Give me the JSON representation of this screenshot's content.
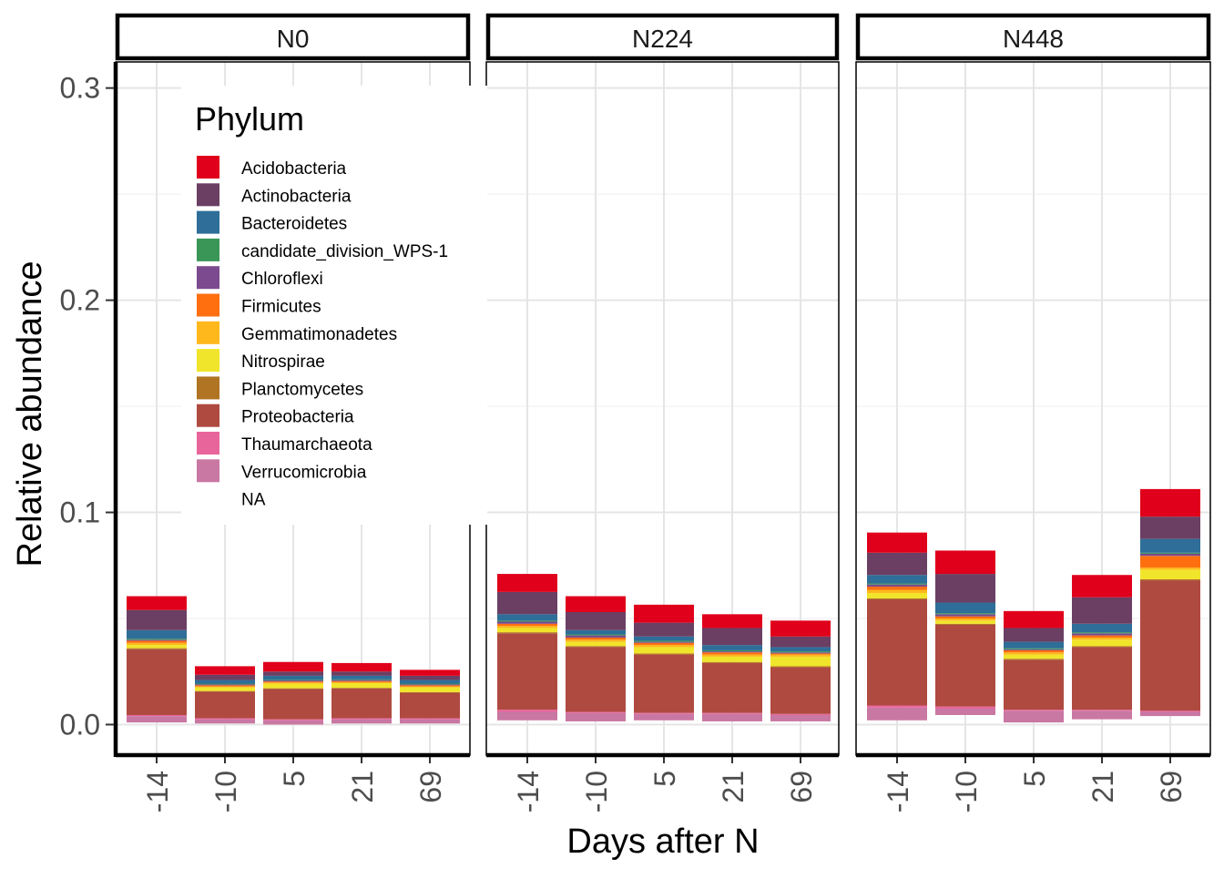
{
  "chart_data": {
    "type": "bar",
    "stacked": true,
    "facets": [
      "N0",
      "N224",
      "N448"
    ],
    "categories": [
      "-14",
      "-10",
      "5",
      "21",
      "69"
    ],
    "xlabel": "Days after N",
    "ylabel": "Relative abundance",
    "ylim": [
      -0.0144,
      0.3123
    ],
    "yticks": [
      0.0,
      0.1,
      0.2,
      0.3
    ],
    "ytick_labels": [
      "0.0",
      "0.1",
      "0.2",
      "0.3"
    ],
    "grid": true,
    "legend": {
      "title": "Phylum",
      "placement": "inside top-left of first panel",
      "entries": [
        {
          "name": "Acidobacteria",
          "color": "#E0001B"
        },
        {
          "name": "Actinobacteria",
          "color": "#6B3F63"
        },
        {
          "name": "Bacteroidetes",
          "color": "#2E6E99"
        },
        {
          "name": "candidate_division_WPS-1",
          "color": "#3A9657"
        },
        {
          "name": "Chloroflexi",
          "color": "#7B4A8F"
        },
        {
          "name": "Firmicutes",
          "color": "#FF6F0F"
        },
        {
          "name": "Gemmatimonadetes",
          "color": "#FFB81C"
        },
        {
          "name": "Nitrospirae",
          "color": "#F0E52A"
        },
        {
          "name": "Planctomycetes",
          "color": "#B07423"
        },
        {
          "name": "Proteobacteria",
          "color": "#AF4A40"
        },
        {
          "name": "Thaumarchaeota",
          "color": "#E8659C"
        },
        {
          "name": "Verrucomicrobia",
          "color": "#C977A3"
        },
        {
          "name": "NA",
          "color": "#FFFFFF"
        }
      ]
    },
    "stack_order": [
      "Verrucomicrobia",
      "Thaumarchaeota",
      "Proteobacteria",
      "Planctomycetes",
      "Nitrospirae",
      "Gemmatimonadetes",
      "Firmicutes",
      "Chloroflexi",
      "candidate_division_WPS-1",
      "Bacteroidetes",
      "Actinobacteria",
      "Acidobacteria"
    ],
    "bars": {
      "N0": [
        {
          "base": 0.001,
          "Verrucomicrobia": 0.003,
          "Thaumarchaeota": 0.0005,
          "Proteobacteria": 0.031,
          "Planctomycetes": 0.0005,
          "Nitrospirae": 0.0015,
          "Gemmatimonadetes": 0.001,
          "Firmicutes": 0.001,
          "Chloroflexi": 0.0005,
          "candidate_division_WPS-1": 0.0005,
          "Bacteroidetes": 0.004,
          "Actinobacteria": 0.0095,
          "Acidobacteria": 0.0065
        },
        {
          "base": 0.0005,
          "Verrucomicrobia": 0.002,
          "Thaumarchaeota": 0.0005,
          "Proteobacteria": 0.0125,
          "Planctomycetes": 0.0003,
          "Nitrospirae": 0.0017,
          "Gemmatimonadetes": 0.0005,
          "Firmicutes": 0.0005,
          "Chloroflexi": 0.0005,
          "candidate_division_WPS-1": 0.0003,
          "Bacteroidetes": 0.0017,
          "Actinobacteria": 0.0025,
          "Acidobacteria": 0.004
        },
        {
          "base": 0.0,
          "Verrucomicrobia": 0.002,
          "Thaumarchaeota": 0.0005,
          "Proteobacteria": 0.0143,
          "Planctomycetes": 0.0003,
          "Nitrospirae": 0.0022,
          "Gemmatimonadetes": 0.0005,
          "Firmicutes": 0.0005,
          "Chloroflexi": 0.0005,
          "candidate_division_WPS-1": 0.0003,
          "Bacteroidetes": 0.0019,
          "Actinobacteria": 0.002,
          "Acidobacteria": 0.0045
        },
        {
          "base": 0.0005,
          "Verrucomicrobia": 0.002,
          "Thaumarchaeota": 0.0005,
          "Proteobacteria": 0.014,
          "Planctomycetes": 0.0003,
          "Nitrospirae": 0.0022,
          "Gemmatimonadetes": 0.0005,
          "Firmicutes": 0.0005,
          "Chloroflexi": 0.0005,
          "candidate_division_WPS-1": 0.0003,
          "Bacteroidetes": 0.0017,
          "Actinobacteria": 0.002,
          "Acidobacteria": 0.004
        },
        {
          "base": 0.0005,
          "Verrucomicrobia": 0.002,
          "Thaumarchaeota": 0.0005,
          "Proteobacteria": 0.012,
          "Planctomycetes": 0.0003,
          "Nitrospirae": 0.0022,
          "Gemmatimonadetes": 0.0005,
          "Firmicutes": 0.0005,
          "Chloroflexi": 0.0005,
          "candidate_division_WPS-1": 0.0003,
          "Bacteroidetes": 0.0017,
          "Actinobacteria": 0.002,
          "Acidobacteria": 0.0028
        }
      ],
      "N224": [
        {
          "base": 0.002,
          "Verrucomicrobia": 0.004,
          "Thaumarchaeota": 0.001,
          "Proteobacteria": 0.036,
          "Planctomycetes": 0.0005,
          "Nitrospirae": 0.002,
          "Gemmatimonadetes": 0.001,
          "Firmicutes": 0.001,
          "Chloroflexi": 0.001,
          "candidate_division_WPS-1": 0.0005,
          "Bacteroidetes": 0.003,
          "Actinobacteria": 0.0105,
          "Acidobacteria": 0.0085
        },
        {
          "base": 0.0015,
          "Verrucomicrobia": 0.004,
          "Thaumarchaeota": 0.0005,
          "Proteobacteria": 0.0305,
          "Planctomycetes": 0.0005,
          "Nitrospirae": 0.002,
          "Gemmatimonadetes": 0.001,
          "Firmicutes": 0.001,
          "Chloroflexi": 0.001,
          "candidate_division_WPS-1": 0.0005,
          "Bacteroidetes": 0.002,
          "Actinobacteria": 0.0085,
          "Acidobacteria": 0.0075
        },
        {
          "base": 0.002,
          "Verrucomicrobia": 0.003,
          "Thaumarchaeota": 0.0005,
          "Proteobacteria": 0.0275,
          "Planctomycetes": 0.0005,
          "Nitrospirae": 0.003,
          "Gemmatimonadetes": 0.001,
          "Firmicutes": 0.001,
          "Chloroflexi": 0.0005,
          "candidate_division_WPS-1": 0.0005,
          "Bacteroidetes": 0.002,
          "Actinobacteria": 0.0065,
          "Acidobacteria": 0.0085
        },
        {
          "base": 0.0015,
          "Verrucomicrobia": 0.0035,
          "Thaumarchaeota": 0.0005,
          "Proteobacteria": 0.0235,
          "Planctomycetes": 0.0005,
          "Nitrospirae": 0.0025,
          "Gemmatimonadetes": 0.001,
          "Firmicutes": 0.001,
          "Chloroflexi": 0.0005,
          "candidate_division_WPS-1": 0.0005,
          "Bacteroidetes": 0.0025,
          "Actinobacteria": 0.008,
          "Acidobacteria": 0.0065
        },
        {
          "base": 0.0015,
          "Verrucomicrobia": 0.003,
          "Thaumarchaeota": 0.0005,
          "Proteobacteria": 0.022,
          "Planctomycetes": 0.0005,
          "Nitrospirae": 0.0045,
          "Gemmatimonadetes": 0.001,
          "Firmicutes": 0.0005,
          "Chloroflexi": 0.0005,
          "candidate_division_WPS-1": 0.0005,
          "Bacteroidetes": 0.002,
          "Actinobacteria": 0.005,
          "Acidobacteria": 0.0075
        }
      ],
      "N448": [
        {
          "base": 0.002,
          "Verrucomicrobia": 0.006,
          "Thaumarchaeota": 0.001,
          "Proteobacteria": 0.05,
          "Planctomycetes": 0.0005,
          "Nitrospirae": 0.0025,
          "Gemmatimonadetes": 0.0015,
          "Firmicutes": 0.0015,
          "Chloroflexi": 0.001,
          "candidate_division_WPS-1": 0.0005,
          "Bacteroidetes": 0.004,
          "Actinobacteria": 0.0105,
          "Acidobacteria": 0.0095
        },
        {
          "base": 0.0045,
          "Verrucomicrobia": 0.003,
          "Thaumarchaeota": 0.001,
          "Proteobacteria": 0.0385,
          "Planctomycetes": 0.0005,
          "Nitrospirae": 0.0015,
          "Gemmatimonadetes": 0.001,
          "Firmicutes": 0.001,
          "Chloroflexi": 0.001,
          "candidate_division_WPS-1": 0.0005,
          "Bacteroidetes": 0.005,
          "Actinobacteria": 0.0135,
          "Acidobacteria": 0.011
        },
        {
          "base": 0.001,
          "Verrucomicrobia": 0.0055,
          "Thaumarchaeota": 0.0005,
          "Proteobacteria": 0.0235,
          "Planctomycetes": 0.0005,
          "Nitrospirae": 0.002,
          "Gemmatimonadetes": 0.001,
          "Firmicutes": 0.001,
          "Chloroflexi": 0.0005,
          "candidate_division_WPS-1": 0.0005,
          "Bacteroidetes": 0.003,
          "Actinobacteria": 0.0065,
          "Acidobacteria": 0.008
        },
        {
          "base": 0.0025,
          "Verrucomicrobia": 0.004,
          "Thaumarchaeota": 0.0005,
          "Proteobacteria": 0.0295,
          "Planctomycetes": 0.0005,
          "Nitrospirae": 0.003,
          "Gemmatimonadetes": 0.001,
          "Firmicutes": 0.001,
          "Chloroflexi": 0.001,
          "candidate_division_WPS-1": 0.0005,
          "Bacteroidetes": 0.004,
          "Actinobacteria": 0.0125,
          "Acidobacteria": 0.0105
        },
        {
          "base": 0.004,
          "Verrucomicrobia": 0.002,
          "Thaumarchaeota": 0.0005,
          "Proteobacteria": 0.0615,
          "Planctomycetes": 0.0005,
          "Nitrospirae": 0.0045,
          "Gemmatimonadetes": 0.001,
          "Firmicutes": 0.0055,
          "Chloroflexi": 0.001,
          "candidate_division_WPS-1": 0.0005,
          "Bacteroidetes": 0.0065,
          "Actinobacteria": 0.0105,
          "Acidobacteria": 0.013
        }
      ]
    }
  }
}
